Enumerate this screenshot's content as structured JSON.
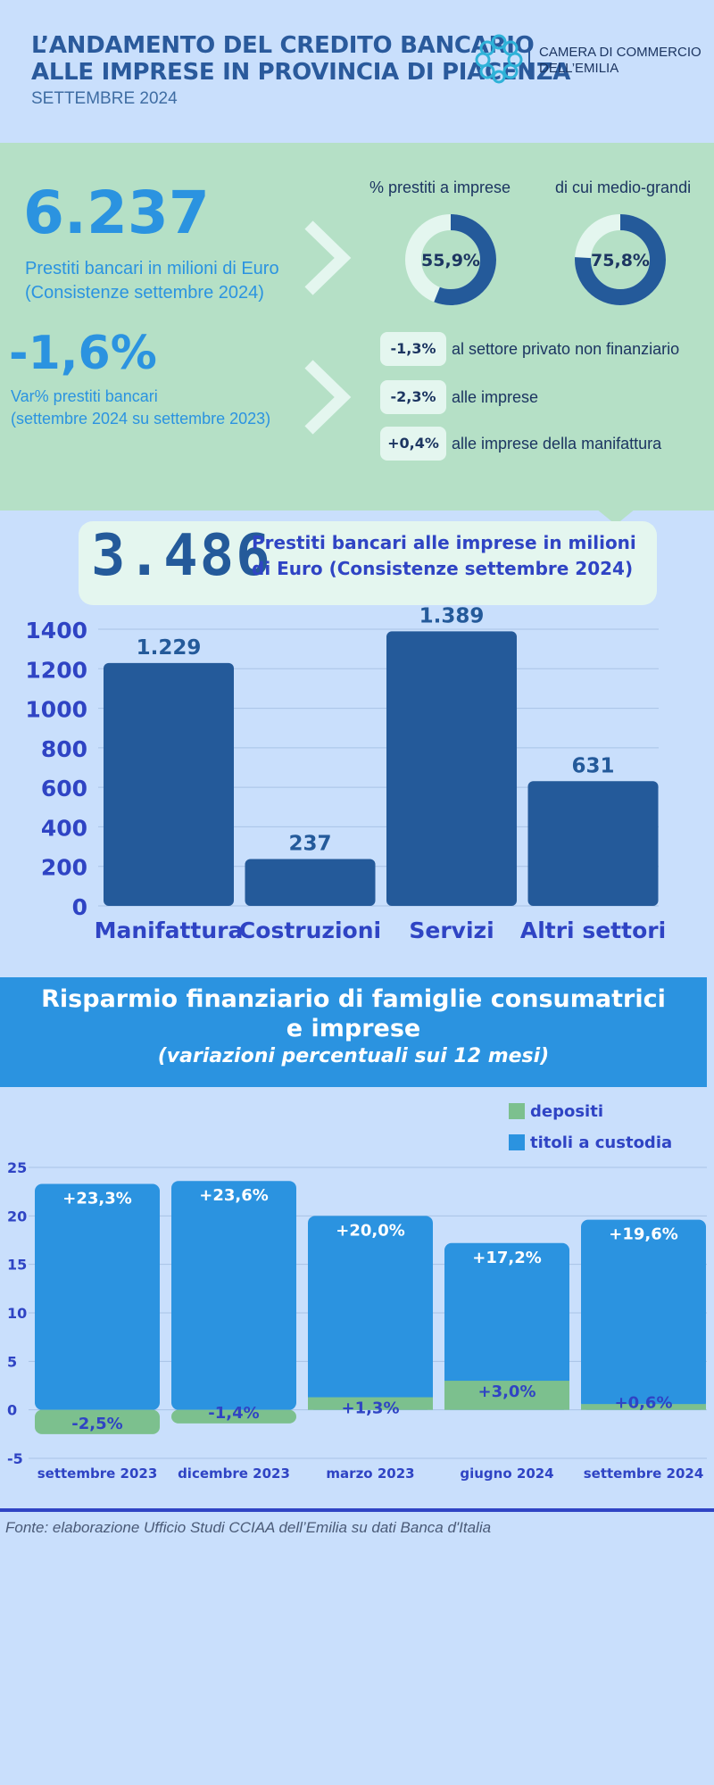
{
  "header": {
    "title_line1": "L’ANDAMENTO DEL CREDITO BANCARIO",
    "title_line2": "ALLE IMPRESE IN PROVINCIA DI PIACENZA",
    "date": "SETTEMBRE 2024",
    "org_line1": "CAMERA DI COMMERCIO",
    "org_line2": "DELL’EMILIA"
  },
  "kpi": {
    "loans_total": "6.237",
    "loans_desc_line1": "Prestiti bancari in milioni di Euro",
    "loans_desc_line2": "(Consistenze settembre 2024)",
    "variation": "-1,6%",
    "variation_desc_line1": "Var% prestiti bancari",
    "variation_desc_line2": "(settembre 2024 su settembre 2023)",
    "donuts": [
      {
        "label": "%  prestiti a imprese",
        "value": 55.9,
        "display": "55,9%"
      },
      {
        "label": "di cui medio-grandi",
        "value": 75.8,
        "display": "75,8%"
      }
    ],
    "changes": [
      {
        "value": "-1,3%",
        "label": "al settore privato non finanziario"
      },
      {
        "value": "-2,3%",
        "label": "alle imprese"
      },
      {
        "value": "+0,4%",
        "label": "alle imprese della manifattura"
      }
    ]
  },
  "business_loans": {
    "total": "3.486",
    "desc_line1": "Prestiti bancari alle imprese in milioni",
    "desc_line2": "di Euro (Consistenze settembre 2024)"
  },
  "savings": {
    "title_line1": "Risparmio finanziario di famiglie consumatrici",
    "title_line2": "e imprese",
    "subtitle": "(variazioni percentuali sui 12 mesi)"
  },
  "source": "Fonte: elaborazione Ufficio Studi CCIAA dell’Emilia su dati Banca d'Italia",
  "colors": {
    "dark_blue": "#245a9a",
    "light_blue": "#2b93e0",
    "green": "#7cc08e",
    "axis_text": "#2f44c4"
  },
  "chart_data": [
    {
      "type": "bar",
      "categories": [
        "Manifattura",
        "Costruzioni",
        "Servizi",
        "Altri settori"
      ],
      "values": [
        1229,
        237,
        1389,
        631
      ],
      "labels": [
        "1.229",
        "237",
        "1.389",
        "631"
      ],
      "ylim": [
        0,
        1400
      ],
      "yticks": [
        0,
        200,
        400,
        600,
        800,
        1000,
        1200,
        1400
      ],
      "grid": true
    },
    {
      "type": "bar",
      "categories": [
        "settembre 2023",
        "dicembre 2023",
        "marzo 2023",
        "giugno 2024",
        "settembre 2024"
      ],
      "series": [
        {
          "name": "depositi",
          "values": [
            -2.5,
            -1.4,
            1.3,
            3.0,
            0.6
          ],
          "labels": [
            "-2,5%",
            "-1,4%",
            "+1,3%",
            "+3,0%",
            "+0,6%"
          ]
        },
        {
          "name": "titoli a custodia",
          "values": [
            23.3,
            23.6,
            20.0,
            17.2,
            19.6
          ],
          "labels": [
            "+23,3%",
            "+23,6%",
            "+20,0%",
            "+17,2%",
            "+19,6%"
          ]
        }
      ],
      "ylim": [
        -5,
        25
      ],
      "yticks": [
        -5,
        0,
        5,
        10,
        15,
        20,
        25
      ],
      "legend": "top-right",
      "grid": true
    }
  ]
}
